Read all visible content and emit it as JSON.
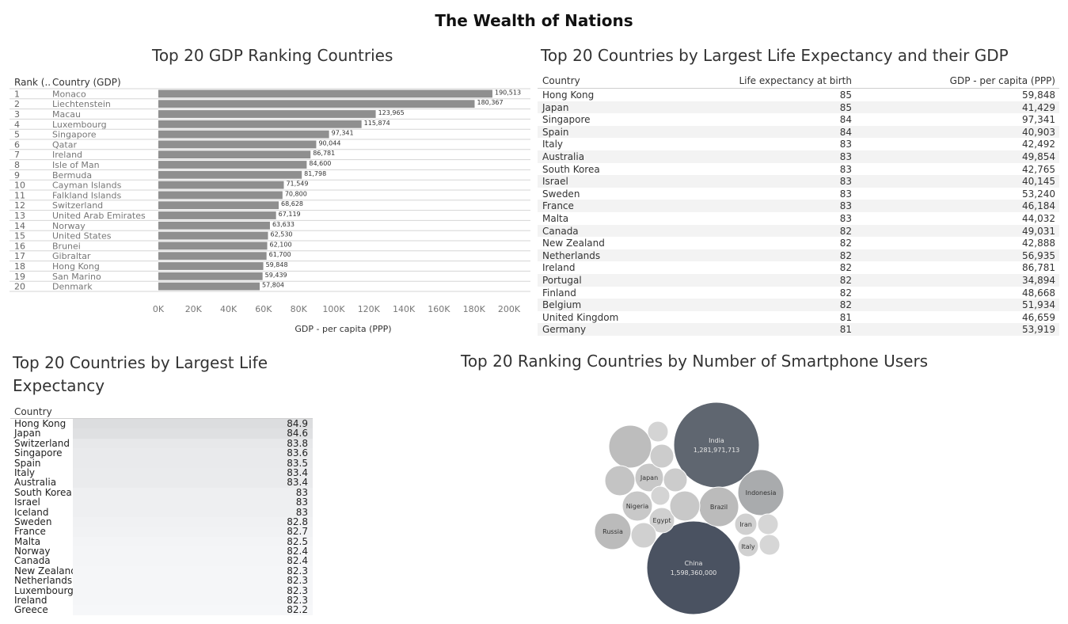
{
  "dashboard": {
    "title": "The Wealth of Nations"
  },
  "gdp_chart": {
    "title": "Top 20 GDP Ranking Countries",
    "rank_header": "Rank (..",
    "country_header": "Country (GDP)",
    "xlabel": "GDP - per capita (PPP)",
    "ticks": [
      "0K",
      "20K",
      "40K",
      "60K",
      "80K",
      "100K",
      "120K",
      "140K",
      "160K",
      "180K",
      "200K"
    ],
    "rows": [
      {
        "rank": "1",
        "country": "Monaco",
        "label": "190,513"
      },
      {
        "rank": "2",
        "country": "Liechtenstein",
        "label": "180,367"
      },
      {
        "rank": "3",
        "country": "Macau",
        "label": "123,965"
      },
      {
        "rank": "4",
        "country": "Luxembourg",
        "label": "115,874"
      },
      {
        "rank": "5",
        "country": "Singapore",
        "label": "97,341"
      },
      {
        "rank": "6",
        "country": "Qatar",
        "label": "90,044"
      },
      {
        "rank": "7",
        "country": "Ireland",
        "label": "86,781"
      },
      {
        "rank": "8",
        "country": "Isle of Man",
        "label": "84,600"
      },
      {
        "rank": "9",
        "country": "Bermuda",
        "label": "81,798"
      },
      {
        "rank": "10",
        "country": "Cayman Islands",
        "label": "71,549"
      },
      {
        "rank": "11",
        "country": "Falkland Islands",
        "label": "70,800"
      },
      {
        "rank": "12",
        "country": "Switzerland",
        "label": "68,628"
      },
      {
        "rank": "13",
        "country": "United Arab Emirates",
        "label": "67,119"
      },
      {
        "rank": "14",
        "country": "Norway",
        "label": "63,633"
      },
      {
        "rank": "15",
        "country": "United States",
        "label": "62,530"
      },
      {
        "rank": "16",
        "country": "Brunei",
        "label": "62,100"
      },
      {
        "rank": "17",
        "country": "Gibraltar",
        "label": "61,700"
      },
      {
        "rank": "18",
        "country": "Hong Kong",
        "label": "59,848"
      },
      {
        "rank": "19",
        "country": "San Marino",
        "label": "59,439"
      },
      {
        "rank": "20",
        "country": "Denmark",
        "label": "57,804"
      }
    ]
  },
  "chart_data": [
    {
      "type": "bar",
      "title": "Top 20 GDP Ranking Countries",
      "xlabel": "GDP - per capita (PPP)",
      "xlim": [
        0,
        200000
      ],
      "bar_color": "#8f8f8f",
      "categories": [
        "Monaco",
        "Liechtenstein",
        "Macau",
        "Luxembourg",
        "Singapore",
        "Qatar",
        "Ireland",
        "Isle of Man",
        "Bermuda",
        "Cayman Islands",
        "Falkland Islands",
        "Switzerland",
        "United Arab Emirates",
        "Norway",
        "United States",
        "Brunei",
        "Gibraltar",
        "Hong Kong",
        "San Marino",
        "Denmark"
      ],
      "values": [
        190513,
        180367,
        123965,
        115874,
        97341,
        90044,
        86781,
        84600,
        81798,
        71549,
        70800,
        68628,
        67119,
        63633,
        62530,
        62100,
        61700,
        59848,
        59439,
        57804
      ]
    },
    {
      "type": "table",
      "title": "Top 20 Countries by Largest Life Expectancy and their GDP",
      "columns": [
        "Country",
        "Life expectancy at birth",
        "GDP - per capita (PPP)"
      ],
      "rows": [
        [
          "Hong Kong",
          "85",
          "59,848"
        ],
        [
          "Japan",
          "85",
          "41,429"
        ],
        [
          "Singapore",
          "84",
          "97,341"
        ],
        [
          "Spain",
          "84",
          "40,903"
        ],
        [
          "Italy",
          "83",
          "42,492"
        ],
        [
          "Australia",
          "83",
          "49,854"
        ],
        [
          "South Korea",
          "83",
          "42,765"
        ],
        [
          "Israel",
          "83",
          "40,145"
        ],
        [
          "Sweden",
          "83",
          "53,240"
        ],
        [
          "France",
          "83",
          "46,184"
        ],
        [
          "Malta",
          "83",
          "44,032"
        ],
        [
          "Canada",
          "82",
          "49,031"
        ],
        [
          "New Zealand",
          "82",
          "42,888"
        ],
        [
          "Netherlands",
          "82",
          "56,935"
        ],
        [
          "Ireland",
          "82",
          "86,781"
        ],
        [
          "Portugal",
          "82",
          "34,894"
        ],
        [
          "Finland",
          "82",
          "48,668"
        ],
        [
          "Belgium",
          "82",
          "51,934"
        ],
        [
          "United Kingdom",
          "81",
          "46,659"
        ],
        [
          "Germany",
          "81",
          "53,919"
        ]
      ]
    },
    {
      "type": "heatmap",
      "title": "Top 20 Countries by Largest Life Expectancy",
      "column": "Country",
      "categories": [
        "Hong Kong",
        "Japan",
        "Switzerland",
        "Singapore",
        "Spain",
        "Italy",
        "Australia",
        "South Korea",
        "Israel",
        "Iceland",
        "Sweden",
        "France",
        "Malta",
        "Norway",
        "Canada",
        "New Zealand",
        "Netherlands",
        "Luxembourg",
        "Ireland",
        "Greece"
      ],
      "value_labels": [
        "84.9",
        "84.6",
        "83.8",
        "83.6",
        "83.5",
        "83.4",
        "83.4",
        "83",
        "83",
        "83",
        "82.8",
        "82.7",
        "82.5",
        "82.4",
        "82.4",
        "82.3",
        "82.3",
        "82.3",
        "82.3",
        "82.2"
      ],
      "values": [
        84.9,
        84.6,
        83.8,
        83.6,
        83.5,
        83.4,
        83.4,
        83,
        83,
        83,
        82.8,
        82.7,
        82.5,
        82.4,
        82.4,
        82.3,
        82.3,
        82.3,
        82.3,
        82.2
      ]
    },
    {
      "type": "bubble",
      "title": "Top 20 Ranking Countries by Number of Smartphone Users",
      "bubbles": [
        {
          "label": "China",
          "value_label": "1,598,360,000",
          "value": 1598360000,
          "color": "#4a5261"
        },
        {
          "label": "India",
          "value_label": "1,281,971,713",
          "value": 1281971713,
          "color": "#5f6670"
        },
        {
          "label": "Indonesia",
          "color": "#a9abad"
        },
        {
          "label": "Brazil",
          "color": "#bbbbbb"
        },
        {
          "label": "Russia",
          "color": "#bbbbbb"
        },
        {
          "label": "Nigeria",
          "color": "#c8c8c8"
        },
        {
          "label": "Japan",
          "color": "#c8c8c8"
        },
        {
          "label": "Egypt",
          "color": "#d0d0d0"
        },
        {
          "label": "Iran",
          "color": "#d0d0d0"
        },
        {
          "label": "Italy",
          "color": "#d0d0d0"
        },
        {
          "label": "",
          "color": "#bdbdbd"
        },
        {
          "label": "",
          "color": "#c4c4c4"
        },
        {
          "label": "",
          "color": "#c8c8c8"
        },
        {
          "label": "",
          "color": "#cccccc"
        },
        {
          "label": "",
          "color": "#cccccc"
        },
        {
          "label": "",
          "color": "#d0d0d0"
        },
        {
          "label": "",
          "color": "#d4d4d4"
        },
        {
          "label": "",
          "color": "#d4d4d4"
        },
        {
          "label": "",
          "color": "#d6d6d6"
        },
        {
          "label": "",
          "color": "#d6d6d6"
        }
      ]
    }
  ]
}
